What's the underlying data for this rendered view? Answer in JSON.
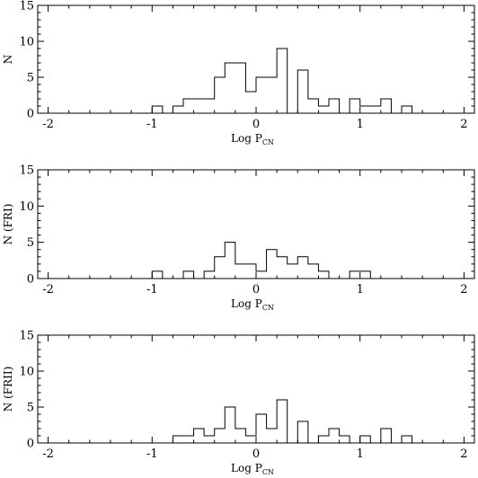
{
  "chart_data": [
    {
      "type": "histogram",
      "ylabel": "N",
      "xlabel_main": "Log P",
      "xlabel_sub": "CN",
      "xlim": [
        -2.1,
        2.1
      ],
      "ylim": [
        0,
        15
      ],
      "xticks": [
        -2,
        -1,
        0,
        1,
        2
      ],
      "xtick_labels": [
        "-2",
        "-1",
        "0",
        "1",
        "2"
      ],
      "yticks": [
        0,
        5,
        10,
        15
      ],
      "ytick_labels": [
        "0",
        "5",
        "10",
        "15"
      ],
      "bin_edges": [
        -1.0,
        -0.9,
        -0.8,
        -0.7,
        -0.6,
        -0.5,
        -0.4,
        -0.3,
        -0.2,
        -0.1,
        0.0,
        0.1,
        0.2,
        0.3,
        0.4,
        0.5,
        0.6,
        0.7,
        0.8,
        0.9,
        1.0,
        1.1,
        1.2,
        1.3,
        1.4,
        1.5
      ],
      "counts": [
        1,
        0,
        1,
        2,
        2,
        2,
        5,
        7,
        7,
        3,
        5,
        5,
        9,
        0,
        6,
        2,
        1,
        2,
        0,
        2,
        1,
        1,
        2,
        0,
        1
      ]
    },
    {
      "type": "histogram",
      "ylabel": "N (FRI)",
      "xlabel_main": "Log P",
      "xlabel_sub": "CN",
      "xlim": [
        -2.1,
        2.1
      ],
      "ylim": [
        0,
        15
      ],
      "xticks": [
        -2,
        -1,
        0,
        1,
        2
      ],
      "xtick_labels": [
        "-2",
        "-1",
        "0",
        "1",
        "2"
      ],
      "yticks": [
        0,
        5,
        10,
        15
      ],
      "ytick_labels": [
        "0",
        "5",
        "10",
        "15"
      ],
      "bin_edges": [
        -1.0,
        -0.9,
        -0.8,
        -0.7,
        -0.6,
        -0.5,
        -0.4,
        -0.3,
        -0.2,
        -0.1,
        0.0,
        0.1,
        0.2,
        0.3,
        0.4,
        0.5,
        0.6,
        0.7,
        0.8,
        0.9,
        1.0,
        1.1
      ],
      "counts": [
        1,
        0,
        0,
        1,
        0,
        1,
        3,
        5,
        2,
        2,
        1,
        4,
        3,
        2,
        3,
        2,
        1,
        0,
        0,
        1,
        1
      ]
    },
    {
      "type": "histogram",
      "ylabel": "N (FRII)",
      "xlabel_main": "Log P",
      "xlabel_sub": "CN",
      "xlim": [
        -2.1,
        2.1
      ],
      "ylim": [
        0,
        15
      ],
      "xticks": [
        -2,
        -1,
        0,
        1,
        2
      ],
      "xtick_labels": [
        "-2",
        "-1",
        "0",
        "1",
        "2"
      ],
      "yticks": [
        0,
        5,
        10,
        15
      ],
      "ytick_labels": [
        "0",
        "5",
        "10",
        "15"
      ],
      "bin_edges": [
        -0.8,
        -0.7,
        -0.6,
        -0.5,
        -0.4,
        -0.3,
        -0.2,
        -0.1,
        0.0,
        0.1,
        0.2,
        0.3,
        0.4,
        0.5,
        0.6,
        0.7,
        0.8,
        0.9,
        1.0,
        1.1,
        1.2,
        1.3,
        1.4,
        1.5
      ],
      "counts": [
        1,
        1,
        2,
        1,
        2,
        5,
        2,
        1,
        4,
        2,
        6,
        0,
        3,
        0,
        1,
        2,
        1,
        0,
        1,
        0,
        2,
        0,
        1
      ]
    }
  ]
}
